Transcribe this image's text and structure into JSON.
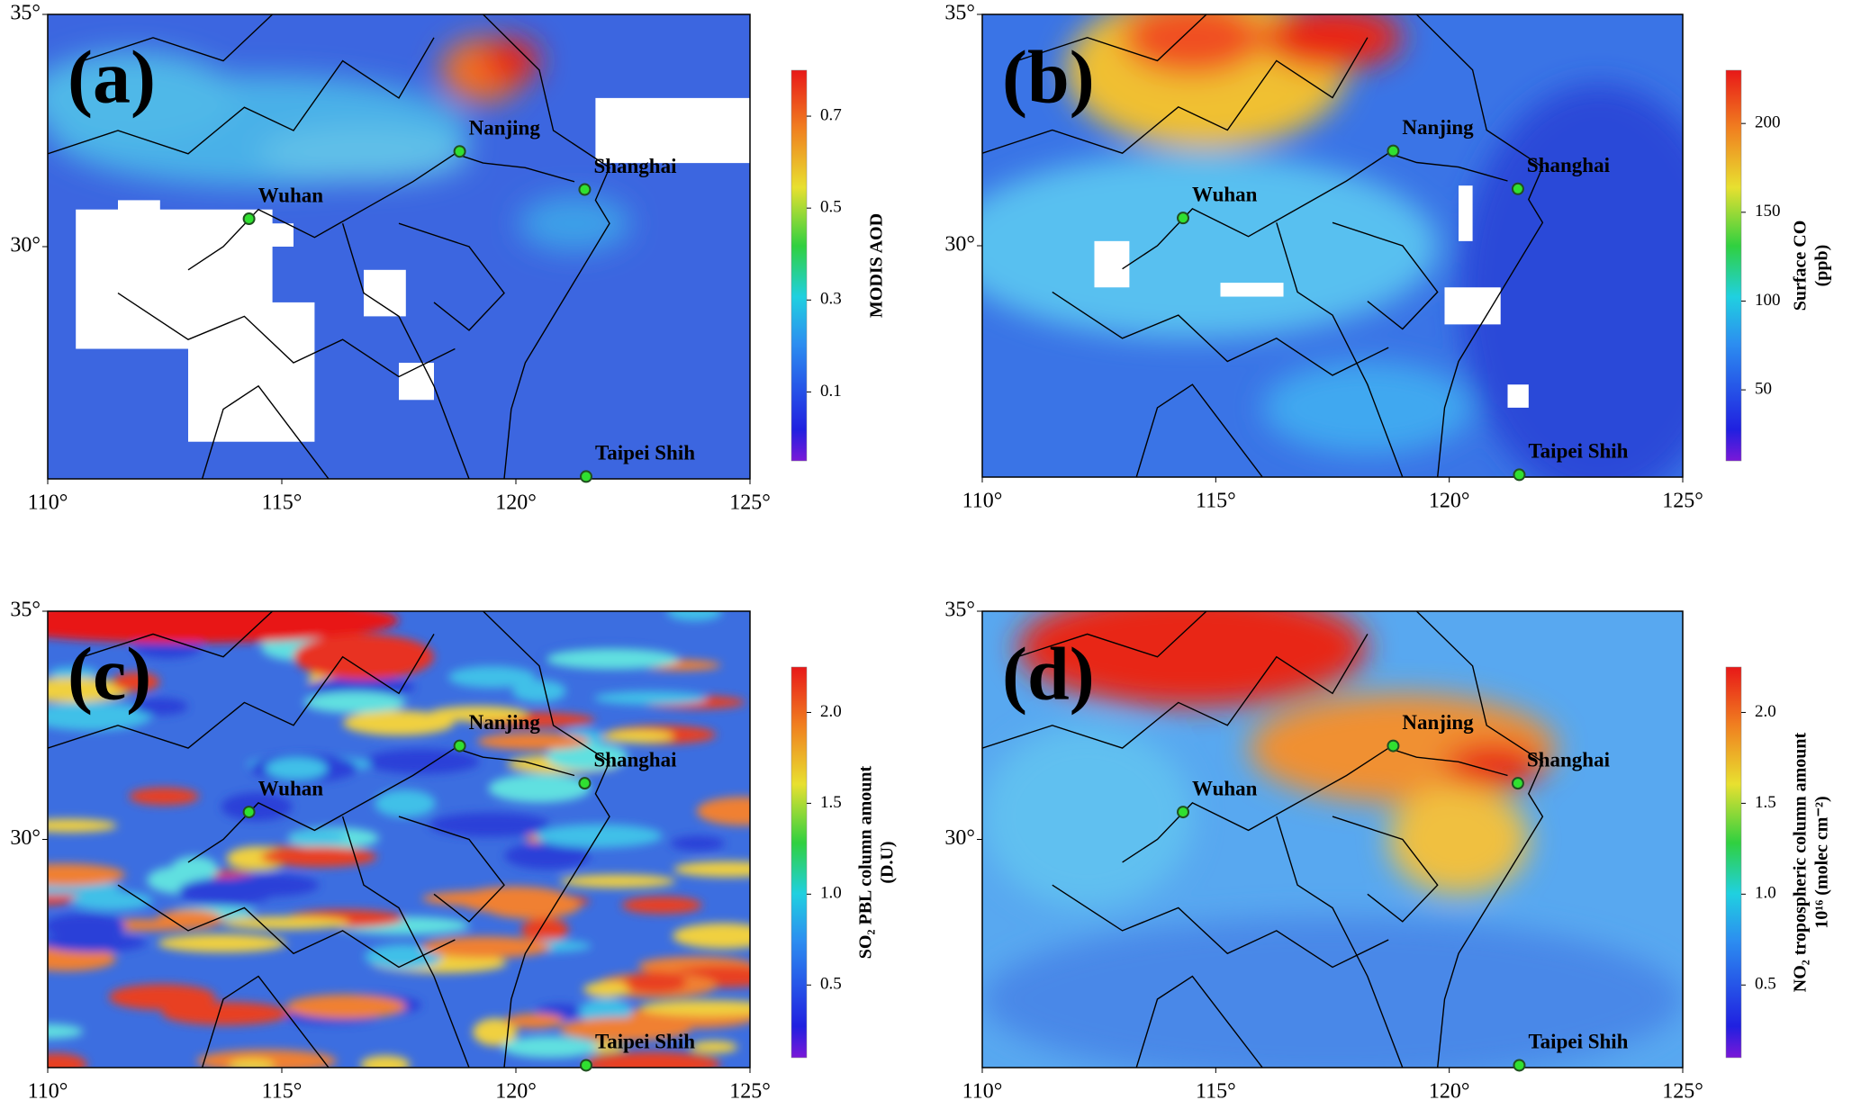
{
  "panels": [
    {
      "label": "(a)",
      "colorbar_label": [
        "MODIS  AOD"
      ],
      "clim": [
        -0.05,
        0.8
      ],
      "cticks": [
        0.1,
        0.3,
        0.5,
        0.7
      ],
      "xlim": [
        110,
        125
      ],
      "ylim": [
        25,
        35
      ],
      "xticks": [
        {
          "value": 110,
          "label": "110°"
        },
        {
          "value": 115,
          "label": "115°"
        },
        {
          "value": 120,
          "label": "120°"
        },
        {
          "value": 125,
          "label": "125°"
        }
      ],
      "yticks": [
        {
          "value": 30,
          "label": "30°"
        },
        {
          "value": 35,
          "label": "35°"
        }
      ],
      "cities": [
        {
          "name": "Nanjing",
          "lon": 118.8,
          "lat": 32.05
        },
        {
          "name": "Shanghai",
          "lon": 121.47,
          "lat": 31.23
        },
        {
          "name": "Wuhan",
          "lon": 114.3,
          "lat": 30.6
        },
        {
          "name": "Taipei Shih",
          "lon": 121.5,
          "lat": 25.05
        }
      ]
    },
    {
      "label": "(b)",
      "colorbar_label": [
        "Surface CO",
        "(ppb)"
      ],
      "clim": [
        10,
        230
      ],
      "cticks": [
        50,
        100,
        150,
        200
      ],
      "xlim": [
        110,
        125
      ],
      "ylim": [
        25,
        35
      ],
      "xticks": [
        {
          "value": 110,
          "label": "110°"
        },
        {
          "value": 115,
          "label": "115°"
        },
        {
          "value": 120,
          "label": "120°"
        },
        {
          "value": 125,
          "label": "125°"
        }
      ],
      "yticks": [
        {
          "value": 30,
          "label": "30°"
        },
        {
          "value": 35,
          "label": "35°"
        }
      ],
      "cities": [
        {
          "name": "Nanjing",
          "lon": 118.8,
          "lat": 32.05
        },
        {
          "name": "Shanghai",
          "lon": 121.47,
          "lat": 31.23
        },
        {
          "name": "Wuhan",
          "lon": 114.3,
          "lat": 30.6
        },
        {
          "name": "Taipei Shih",
          "lon": 121.5,
          "lat": 25.05
        }
      ]
    },
    {
      "label": "(c)",
      "colorbar_label": [
        "SO₂ PBL column amount",
        "(D.U)"
      ],
      "clim": [
        0.1,
        2.25
      ],
      "cticks": [
        0.5,
        {
          "value": 1,
          "label": "1.0"
        },
        1.5,
        {
          "value": 2,
          "label": "2.0"
        }
      ],
      "xlim": [
        110,
        125
      ],
      "ylim": [
        25,
        35
      ],
      "xticks": [
        {
          "value": 110,
          "label": "110°"
        },
        {
          "value": 115,
          "label": "115°"
        },
        {
          "value": 120,
          "label": "120°"
        },
        {
          "value": 125,
          "label": "125°"
        }
      ],
      "yticks": [
        {
          "value": 30,
          "label": "30°"
        },
        {
          "value": 35,
          "label": "35°"
        }
      ],
      "cities": [
        {
          "name": "Nanjing",
          "lon": 118.8,
          "lat": 32.05
        },
        {
          "name": "Shanghai",
          "lon": 121.47,
          "lat": 31.23
        },
        {
          "name": "Wuhan",
          "lon": 114.3,
          "lat": 30.6
        },
        {
          "name": "Taipei Shih",
          "lon": 121.5,
          "lat": 25.05
        }
      ]
    },
    {
      "label": "(d)",
      "colorbar_label": [
        "NO₂ tropospheric column amount",
        "10¹⁶ (molec cm⁻²)"
      ],
      "clim": [
        0.1,
        2.25
      ],
      "cticks": [
        0.5,
        {
          "value": 1,
          "label": "1.0"
        },
        1.5,
        {
          "value": 2,
          "label": "2.0"
        }
      ],
      "xlim": [
        110,
        125
      ],
      "ylim": [
        25,
        35
      ],
      "xticks": [
        {
          "value": 110,
          "label": "110°"
        },
        {
          "value": 115,
          "label": "115°"
        },
        {
          "value": 120,
          "label": "120°"
        },
        {
          "value": 125,
          "label": "125°"
        }
      ],
      "yticks": [
        {
          "value": 30,
          "label": "30°"
        },
        {
          "value": 35,
          "label": "35°"
        }
      ],
      "cities": [
        {
          "name": "Nanjing",
          "lon": 118.8,
          "lat": 32.05
        },
        {
          "name": "Shanghai",
          "lon": 121.47,
          "lat": 31.23
        },
        {
          "name": "Wuhan",
          "lon": 114.3,
          "lat": 30.6
        },
        {
          "name": "Taipei Shih",
          "lon": 121.5,
          "lat": 25.05
        }
      ]
    }
  ]
}
